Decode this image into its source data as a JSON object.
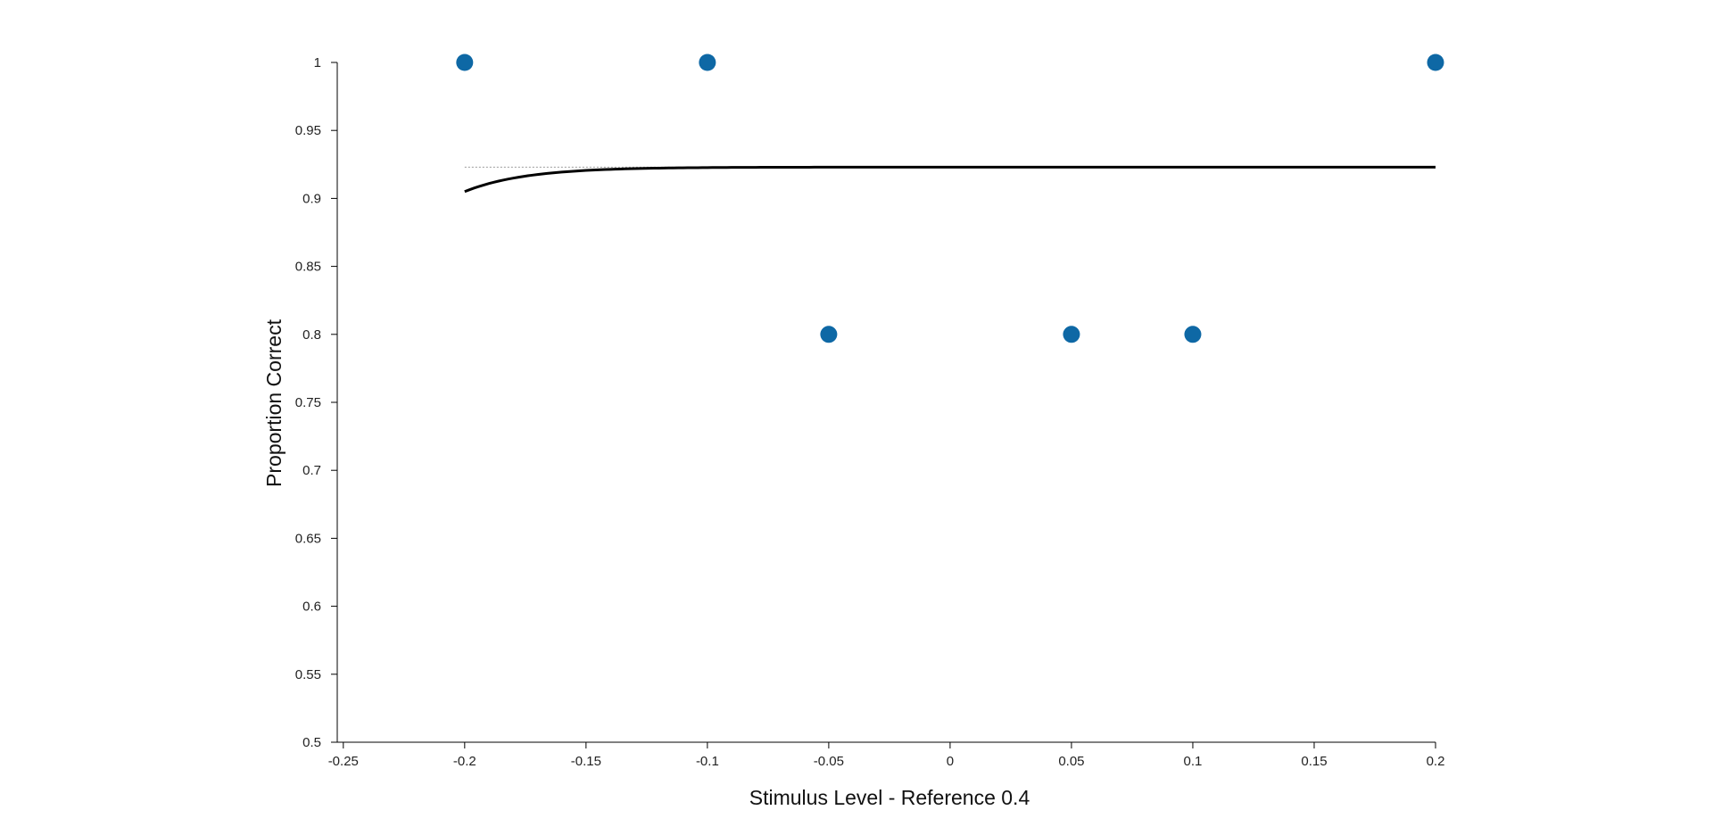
{
  "chart_data": {
    "type": "scatter",
    "title": "",
    "xlabel": "Stimulus Level - Reference 0.4",
    "ylabel": "Proportion Correct",
    "xlim": [
      -0.2525,
      0.2
    ],
    "ylim": [
      0.5,
      1
    ],
    "xticks": [
      "-0.25",
      "-0.2",
      "-0.15",
      "-0.1",
      "-0.05",
      "0",
      "0.05",
      "0.1",
      "0.15",
      "0.2"
    ],
    "yticks": [
      "0.5",
      "0.55",
      "0.6",
      "0.65",
      "0.7",
      "0.75",
      "0.8",
      "0.85",
      "0.9",
      "0.95",
      "1"
    ],
    "grid": false,
    "colors": {
      "points": "#0e68a5",
      "fit": "#000000",
      "asymptote": "#999999",
      "axes": "#000000"
    },
    "series": [
      {
        "kind": "points",
        "x": [
          -0.2,
          -0.1,
          -0.05,
          0.05,
          0.1,
          0.2
        ],
        "y": [
          1.0,
          1.0,
          0.8,
          0.8,
          0.8,
          1.0
        ]
      },
      {
        "kind": "fit_curve",
        "x_range": [
          -0.2,
          0.2
        ],
        "lower_y": 0.905,
        "upper_y": 0.923,
        "decay": 40
      },
      {
        "kind": "asymptote",
        "x": [
          -0.2,
          0.2
        ],
        "y": [
          0.923,
          0.923
        ]
      }
    ]
  }
}
